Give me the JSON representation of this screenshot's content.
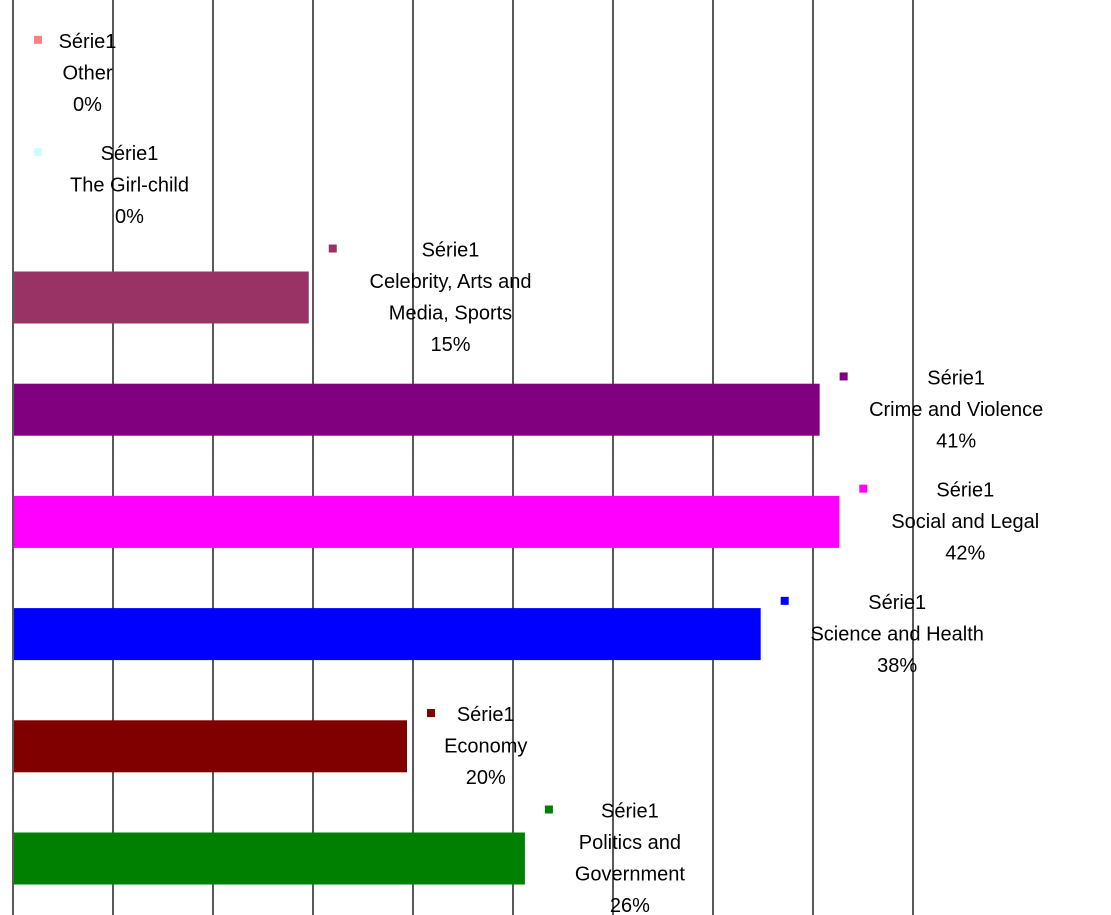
{
  "chart_data": {
    "type": "bar",
    "orientation": "horizontal",
    "grid": "vertical lines, on",
    "legend": "none",
    "series": [
      {
        "name": "Série1",
        "categories": [
          "Politics and Government",
          "Economy",
          "Science and Health",
          "Social and Legal",
          "Crime and Violence",
          "Celebrity, Arts and Media, Sports",
          "The Girl-child",
          "Other"
        ],
        "values": [
          26,
          20,
          38,
          42,
          41,
          15,
          0,
          0
        ],
        "colors": [
          "#008000",
          "#800000",
          "#0000ff",
          "#ff00ff",
          "#800080",
          "#993366",
          "#ccffff",
          "#ff8080"
        ]
      }
    ],
    "data_labels": [
      {
        "series": "Série1",
        "category_lines": [
          "Politics and",
          "Government"
        ],
        "percent": "26%"
      },
      {
        "series": "Série1",
        "category_lines": [
          "Economy"
        ],
        "percent": "20%"
      },
      {
        "series": "Série1",
        "category_lines": [
          "Science and Health"
        ],
        "percent": "38%"
      },
      {
        "series": "Série1",
        "category_lines": [
          "Social and Legal"
        ],
        "percent": "42%"
      },
      {
        "series": "Série1",
        "category_lines": [
          "Crime and Violence"
        ],
        "percent": "41%"
      },
      {
        "series": "Série1",
        "category_lines": [
          "Celebrity, Arts and",
          "Media, Sports"
        ],
        "percent": "15%"
      },
      {
        "series": "Série1",
        "category_lines": [
          "The Girl-child"
        ],
        "percent": "0%"
      },
      {
        "series": "Série1",
        "category_lines": [
          "Other"
        ],
        "percent": "0%"
      }
    ]
  }
}
